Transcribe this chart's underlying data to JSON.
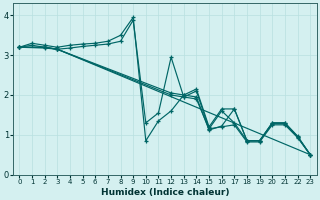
{
  "xlabel": "Humidex (Indice chaleur)",
  "ylabel": "",
  "bg_color": "#d4f0f0",
  "line_color": "#006666",
  "grid_color": "#b8e0e0",
  "xlim": [
    -0.5,
    23.5
  ],
  "ylim": [
    0,
    4.3
  ],
  "xticks": [
    0,
    1,
    2,
    3,
    4,
    5,
    6,
    7,
    8,
    9,
    10,
    11,
    12,
    13,
    14,
    15,
    16,
    17,
    18,
    19,
    20,
    21,
    22,
    23
  ],
  "yticks": [
    0,
    1,
    2,
    3,
    4
  ],
  "lines": [
    {
      "x": [
        0,
        1,
        2,
        3,
        4,
        5,
        6,
        7,
        8,
        9,
        10,
        11,
        12,
        13,
        14,
        15,
        16,
        17,
        18,
        19,
        20,
        21,
        22,
        23
      ],
      "y": [
        3.2,
        3.3,
        3.25,
        3.2,
        3.25,
        3.28,
        3.3,
        3.35,
        3.5,
        3.95,
        0.85,
        1.35,
        1.6,
        2.0,
        2.15,
        1.2,
        1.65,
        1.65,
        0.85,
        0.85,
        1.3,
        1.3,
        0.97,
        0.5
      ]
    },
    {
      "x": [
        0,
        2,
        3,
        23
      ],
      "y": [
        3.2,
        3.2,
        3.15,
        0.5
      ]
    },
    {
      "x": [
        0,
        2,
        3,
        12,
        13,
        14,
        15,
        16,
        17,
        18,
        19,
        20,
        21,
        22,
        23
      ],
      "y": [
        3.2,
        3.2,
        3.15,
        2.0,
        1.95,
        1.9,
        1.15,
        1.2,
        1.25,
        0.82,
        0.82,
        1.25,
        1.25,
        0.93,
        0.5
      ]
    },
    {
      "x": [
        0,
        2,
        3,
        12,
        13,
        14,
        15,
        16,
        17,
        18,
        19,
        20,
        21,
        22,
        23
      ],
      "y": [
        3.2,
        3.18,
        3.15,
        2.05,
        2.0,
        1.95,
        1.12,
        1.22,
        1.65,
        0.85,
        0.85,
        1.28,
        1.28,
        0.95,
        0.5
      ]
    },
    {
      "x": [
        0,
        1,
        2,
        3,
        4,
        5,
        6,
        7,
        8,
        9,
        10,
        11,
        12,
        13,
        14,
        15,
        16,
        17,
        18,
        19,
        20,
        21,
        22,
        23
      ],
      "y": [
        3.2,
        3.25,
        3.2,
        3.15,
        3.18,
        3.22,
        3.25,
        3.28,
        3.35,
        3.88,
        1.3,
        1.55,
        2.95,
        1.95,
        2.1,
        1.15,
        1.6,
        1.3,
        0.85,
        0.85,
        1.3,
        1.3,
        0.95,
        0.5
      ]
    }
  ]
}
